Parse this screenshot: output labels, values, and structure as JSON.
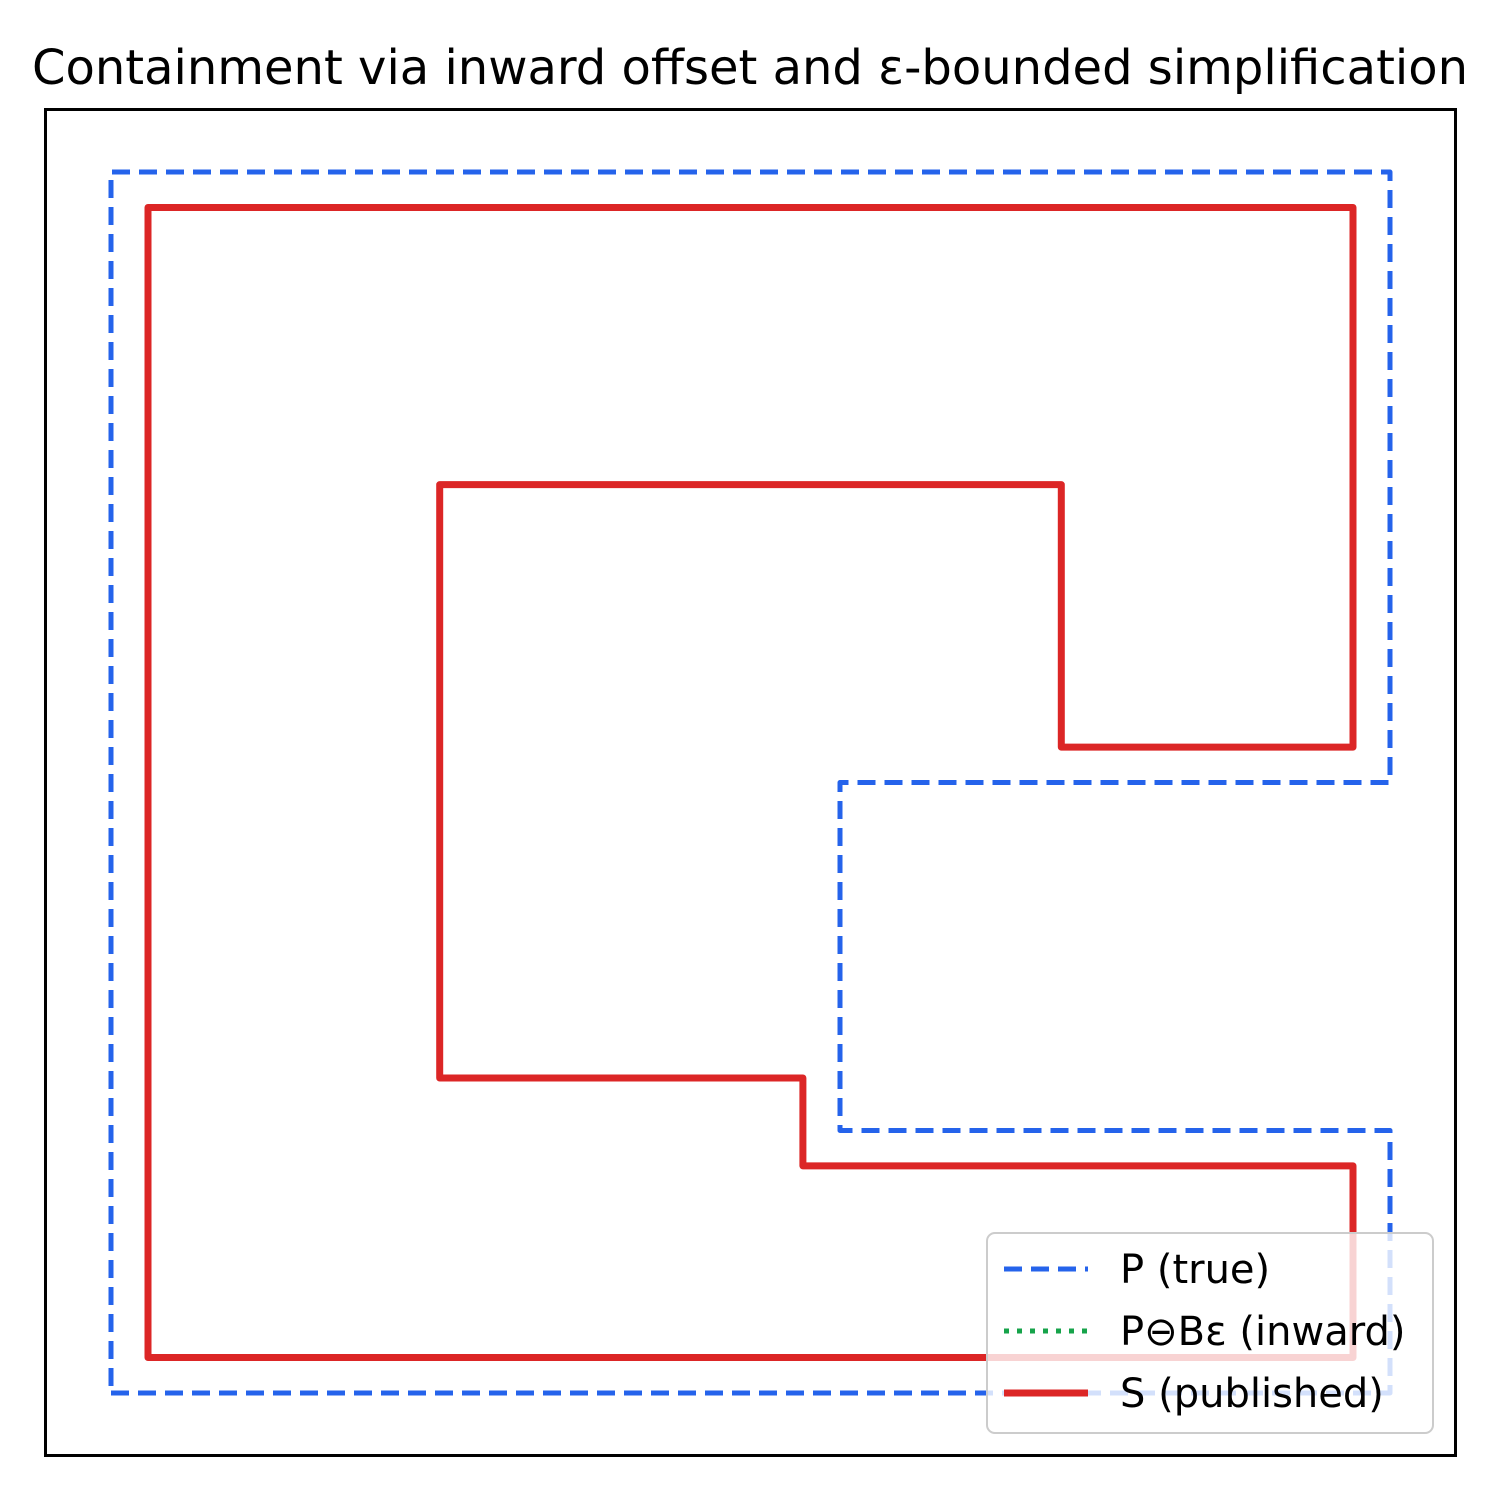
{
  "chart_data": {
    "type": "line",
    "title": "Containment via inward offset and ε-bounded simplification",
    "xlabel": "",
    "ylabel": "",
    "xlim": [
      -0.5,
      10.5
    ],
    "ylim": [
      -0.5,
      10.5
    ],
    "grid": false,
    "axis_ticks": false,
    "legend_placement": "lower-right",
    "series": [
      {
        "name": "P (true)",
        "style": "dashed",
        "color": "#2563eb",
        "x": [
          0,
          10,
          10,
          5.7,
          5.7,
          10,
          10,
          0,
          0
        ],
        "y": [
          0,
          0,
          2.15,
          2.15,
          5.0,
          5.0,
          10,
          10,
          0
        ]
      },
      {
        "name": "P⊖Bε (inward)",
        "style": "dotted",
        "color": "#16a34a",
        "x": [],
        "y": []
      },
      {
        "name": "S (published)",
        "style": "solid",
        "color": "#dc2626",
        "x": [
          0.29,
          9.71,
          9.71,
          5.41,
          5.41,
          2.57,
          2.57,
          7.43,
          7.43,
          9.71,
          9.71,
          0.29,
          0.29
        ],
        "y": [
          0.29,
          0.29,
          1.86,
          1.86,
          2.58,
          2.58,
          7.44,
          7.44,
          5.29,
          5.29,
          9.71,
          9.71,
          0.29
        ]
      }
    ]
  }
}
